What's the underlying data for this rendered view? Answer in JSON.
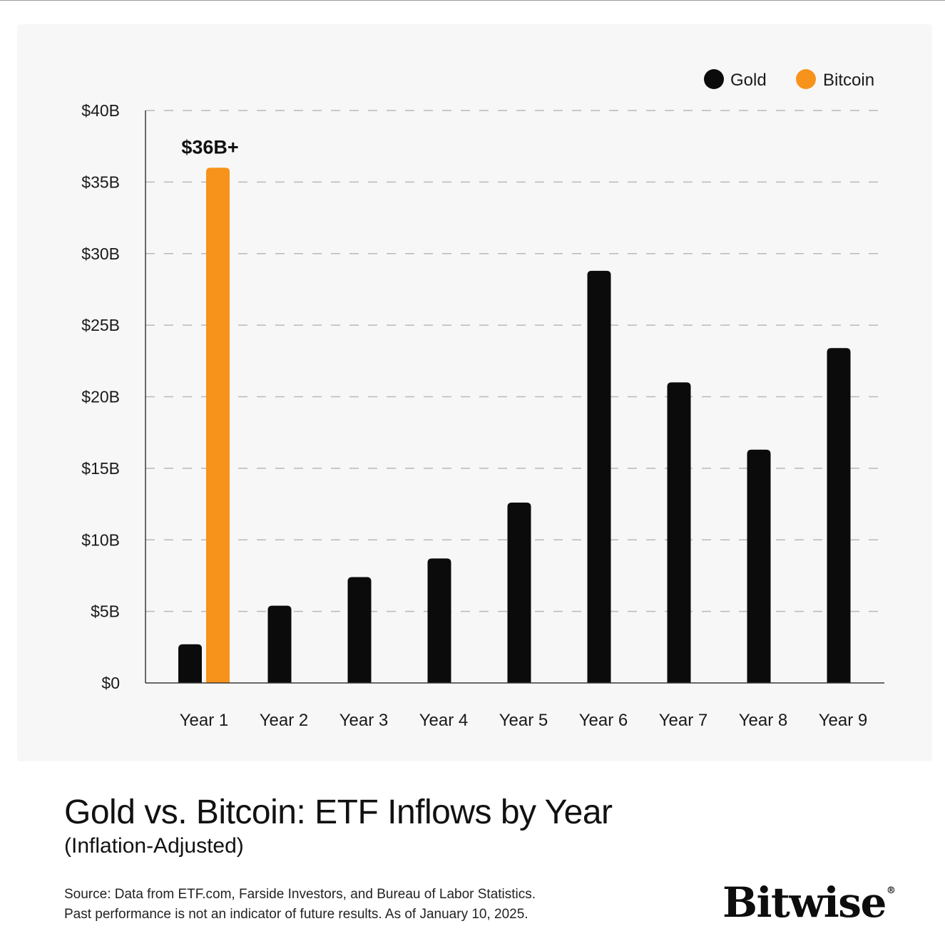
{
  "chart_data": {
    "type": "bar",
    "title": "Gold vs. Bitcoin: ETF Inflows by Year",
    "subtitle": "(Inflation-Adjusted)",
    "xlabel": "",
    "ylabel": "",
    "categories": [
      "Year 1",
      "Year 2",
      "Year 3",
      "Year 4",
      "Year 5",
      "Year 6",
      "Year 7",
      "Year 8",
      "Year 9"
    ],
    "series": [
      {
        "name": "Gold",
        "color": "#0b0b0b",
        "values": [
          2.7,
          5.4,
          7.4,
          8.7,
          12.6,
          28.8,
          21.0,
          16.3,
          23.4
        ]
      },
      {
        "name": "Bitcoin",
        "color": "#f7931a",
        "values": [
          36.0,
          null,
          null,
          null,
          null,
          null,
          null,
          null,
          null
        ]
      }
    ],
    "ylim": [
      0,
      40
    ],
    "yticks": [
      0,
      5,
      10,
      15,
      20,
      25,
      30,
      35,
      40
    ],
    "ytick_labels": [
      "$0",
      "$5B",
      "$10B",
      "$15B",
      "$20B",
      "$25B",
      "$30B",
      "$35B",
      "$40B"
    ],
    "grid": "horizontal-dashed",
    "legend_position": "top-right",
    "annotations": [
      {
        "text": "$36B+",
        "series": "Bitcoin",
        "category": "Year 1"
      }
    ]
  },
  "footer": {
    "source_line1": "Source: Data from ETF.com, Farside Investors, and Bureau of Labor Statistics.",
    "source_line2": "Past performance is not an indicator of future results. As of January 10, 2025."
  },
  "logo": {
    "text": "Bitwise",
    "mark": "®"
  }
}
